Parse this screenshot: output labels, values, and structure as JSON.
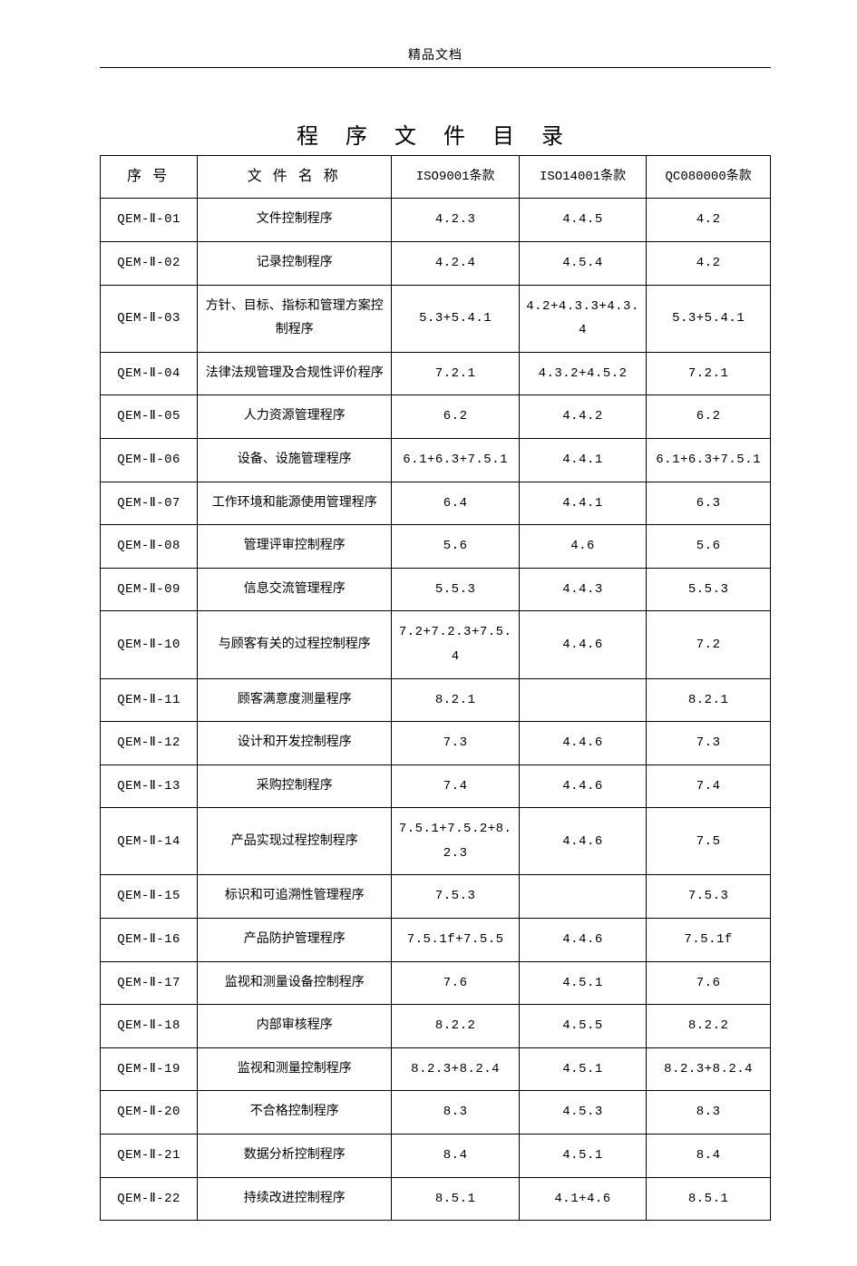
{
  "header": {
    "label": "精品文档"
  },
  "title": "程 序 文 件  目 录",
  "table": {
    "columns": [
      "序  号",
      "文 件 名 称",
      "ISO9001条款",
      "ISO14001条款",
      "QC080000条款"
    ],
    "rows": [
      [
        "QEM-Ⅱ-01",
        "文件控制程序",
        "4.2.3",
        "4.4.5",
        "4.2"
      ],
      [
        "QEM-Ⅱ-02",
        "记录控制程序",
        "4.2.4",
        "4.5.4",
        "4.2"
      ],
      [
        "QEM-Ⅱ-03",
        "方针、目标、指标和管理方案控制程序",
        "5.3+5.4.1",
        "4.2+4.3.3+4.3.4",
        "5.3+5.4.1"
      ],
      [
        "QEM-Ⅱ-04",
        "法律法规管理及合规性评价程序",
        "7.2.1",
        "4.3.2+4.5.2",
        "7.2.1"
      ],
      [
        "QEM-Ⅱ-05",
        "人力资源管理程序",
        "6.2",
        "4.4.2",
        "6.2"
      ],
      [
        "QEM-Ⅱ-06",
        "设备、设施管理程序",
        "6.1+6.3+7.5.1",
        "4.4.1",
        "6.1+6.3+7.5.1"
      ],
      [
        "QEM-Ⅱ-07",
        "工作环境和能源使用管理程序",
        "6.4",
        "4.4.1",
        "6.3"
      ],
      [
        "QEM-Ⅱ-08",
        "管理评审控制程序",
        "5.6",
        "4.6",
        "5.6"
      ],
      [
        "QEM-Ⅱ-09",
        "信息交流管理程序",
        "5.5.3",
        "4.4.3",
        "5.5.3"
      ],
      [
        "QEM-Ⅱ-10",
        "与顾客有关的过程控制程序",
        "7.2+7.2.3+7.5.4",
        "4.4.6",
        "7.2"
      ],
      [
        "QEM-Ⅱ-11",
        "顾客满意度测量程序",
        "8.2.1",
        "",
        "8.2.1"
      ],
      [
        "QEM-Ⅱ-12",
        "设计和开发控制程序",
        "7.3",
        "4.4.6",
        "7.3"
      ],
      [
        "QEM-Ⅱ-13",
        "采购控制程序",
        "7.4",
        "4.4.6",
        "7.4"
      ],
      [
        "QEM-Ⅱ-14",
        "产品实现过程控制程序",
        "7.5.1+7.5.2+8.2.3",
        "4.4.6",
        "7.5"
      ],
      [
        "QEM-Ⅱ-15",
        "标识和可追溯性管理程序",
        "7.5.3",
        "",
        "7.5.3"
      ],
      [
        "QEM-Ⅱ-16",
        "产品防护管理程序",
        "7.5.1f+7.5.5",
        "4.4.6",
        "7.5.1f"
      ],
      [
        "QEM-Ⅱ-17",
        "监视和测量设备控制程序",
        "7.6",
        "4.5.1",
        "7.6"
      ],
      [
        "QEM-Ⅱ-18",
        "内部审核程序",
        "8.2.2",
        "4.5.5",
        "8.2.2"
      ],
      [
        "QEM-Ⅱ-19",
        "监视和测量控制程序",
        "8.2.3+8.2.4",
        "4.5.1",
        "8.2.3+8.2.4"
      ],
      [
        "QEM-Ⅱ-20",
        "不合格控制程序",
        "8.3",
        "4.5.3",
        "8.3"
      ],
      [
        "QEM-Ⅱ-21",
        "数据分析控制程序",
        "8.4",
        "4.5.1",
        "8.4"
      ],
      [
        "QEM-Ⅱ-22",
        "持续改进控制程序",
        "8.5.1",
        "4.1+4.6",
        "8.5.1"
      ]
    ]
  }
}
